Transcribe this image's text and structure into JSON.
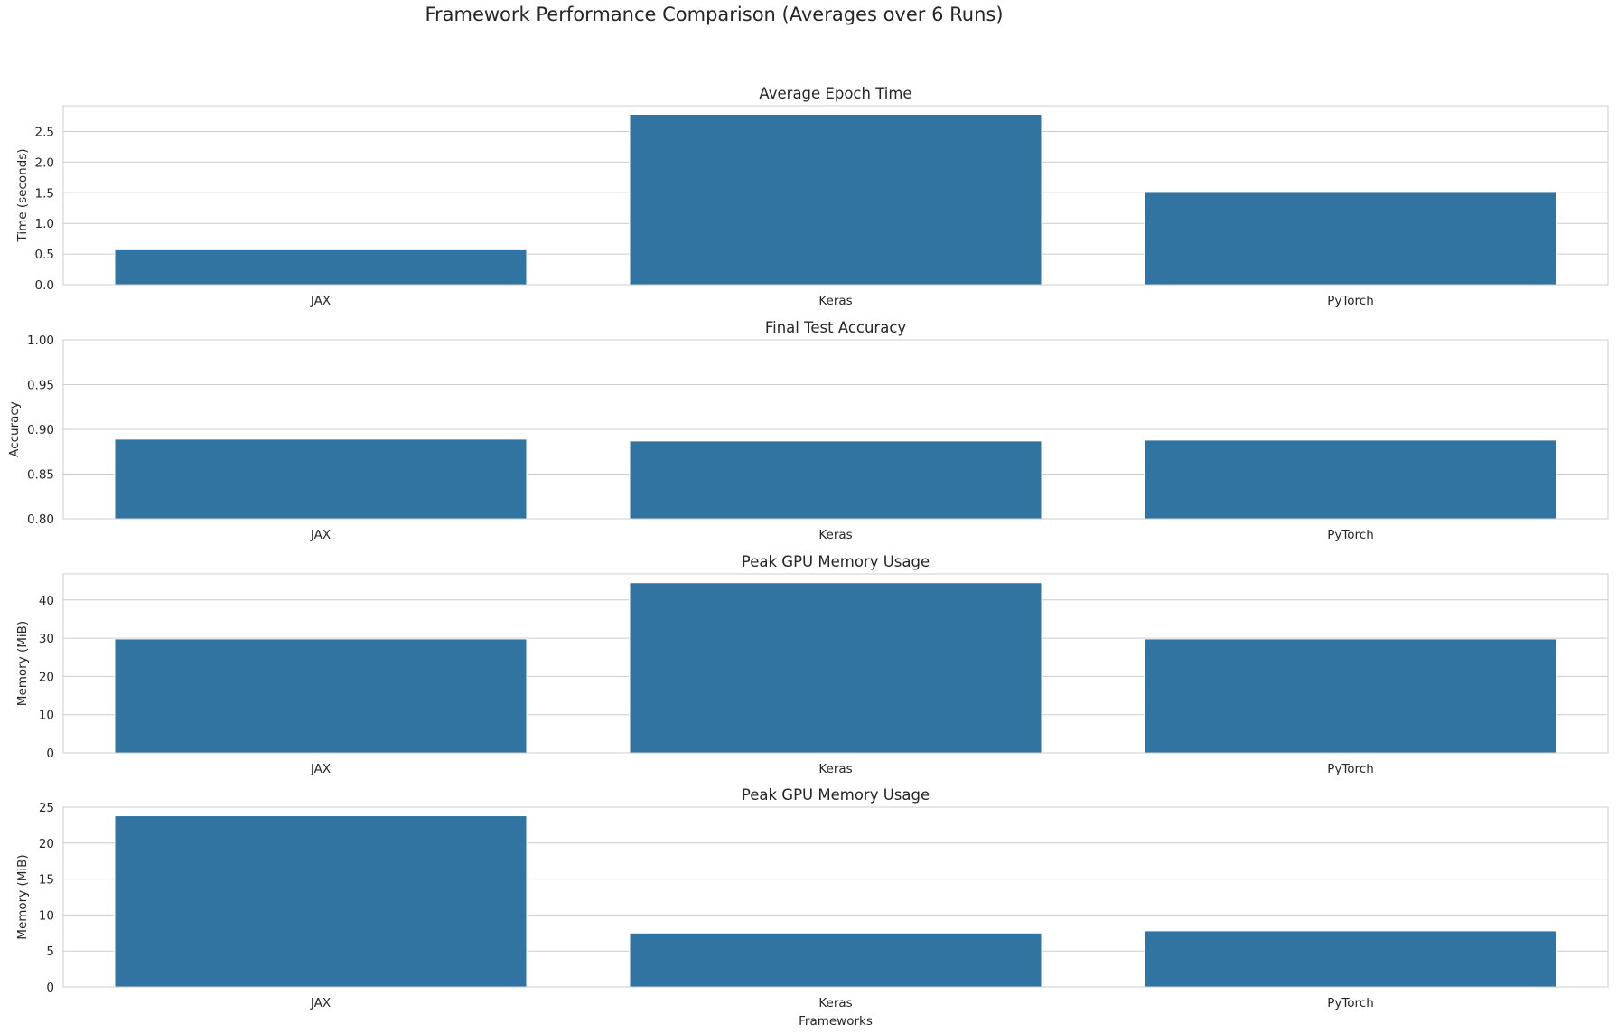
{
  "suptitle": "Framework Performance Comparison (Averages over 6 Runs)",
  "chart_data": [
    {
      "type": "bar",
      "title": "Average Epoch Time",
      "categories": [
        "JAX",
        "Keras",
        "PyTorch"
      ],
      "values": [
        0.57,
        2.78,
        1.52
      ],
      "xlabel": "",
      "ylabel": "Time (seconds)",
      "ylim": [
        0,
        2.92
      ],
      "yticks": [
        0.0,
        0.5,
        1.0,
        1.5,
        2.0,
        2.5
      ],
      "ytick_labels": [
        "0.0",
        "0.5",
        "1.0",
        "1.5",
        "2.0",
        "2.5"
      ],
      "grid": true,
      "color": "#3274a1"
    },
    {
      "type": "bar",
      "title": "Final Test Accuracy",
      "categories": [
        "JAX",
        "Keras",
        "PyTorch"
      ],
      "values": [
        0.889,
        0.887,
        0.888
      ],
      "xlabel": "",
      "ylabel": "Accuracy",
      "ylim": [
        0.8,
        1.0
      ],
      "yticks": [
        0.8,
        0.85,
        0.9,
        0.95,
        1.0
      ],
      "ytick_labels": [
        "0.80",
        "0.85",
        "0.90",
        "0.95",
        "1.00"
      ],
      "grid": true,
      "color": "#3274a1"
    },
    {
      "type": "bar",
      "title": "Peak GPU Memory Usage",
      "categories": [
        "JAX",
        "Keras",
        "PyTorch"
      ],
      "values": [
        29.8,
        44.5,
        29.8
      ],
      "xlabel": "",
      "ylabel": "Memory (MiB)",
      "ylim": [
        0,
        46.8
      ],
      "yticks": [
        0,
        10,
        20,
        30,
        40
      ],
      "ytick_labels": [
        "0",
        "10",
        "20",
        "30",
        "40"
      ],
      "grid": true,
      "color": "#3274a1"
    },
    {
      "type": "bar",
      "title": "Peak GPU Memory Usage",
      "categories": [
        "JAX",
        "Keras",
        "PyTorch"
      ],
      "values": [
        23.8,
        7.5,
        7.8
      ],
      "xlabel": "Frameworks",
      "ylabel": "Memory (MiB)",
      "ylim": [
        0,
        25
      ],
      "yticks": [
        0,
        5,
        10,
        15,
        20,
        25
      ],
      "ytick_labels": [
        "0",
        "5",
        "10",
        "15",
        "20",
        "25"
      ],
      "grid": true,
      "color": "#3274a1"
    }
  ]
}
